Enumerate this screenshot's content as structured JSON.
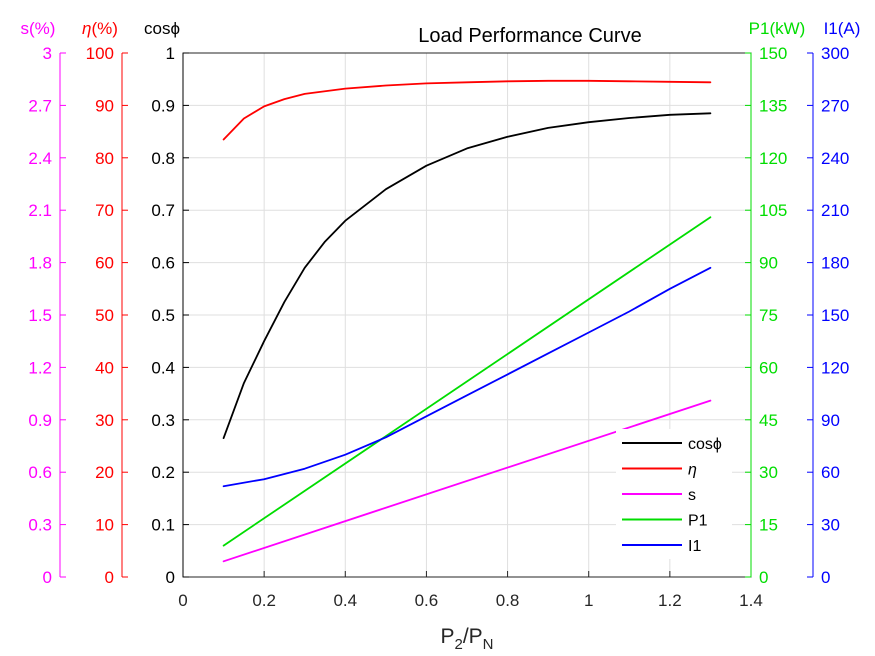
{
  "chart_data": {
    "type": "line",
    "title": "Load Performance Curve",
    "xlabel": {
      "base": "P",
      "sub1": "2",
      "slash": "/P",
      "sub2": "N"
    },
    "xlim": [
      0,
      1.4
    ],
    "xticks": [
      0,
      0.2,
      0.4,
      0.6,
      0.8,
      1,
      1.2,
      1.4
    ],
    "grid": true,
    "legend_location": "bottom-right",
    "axes": [
      {
        "id": "s",
        "side": "left",
        "label": "s(%)",
        "color": "#ff00ff",
        "lim": [
          0,
          3
        ],
        "ticks": [
          "0",
          "0.3",
          "0.6",
          "0.9",
          "1.2",
          "1.5",
          "1.8",
          "2.1",
          "2.4",
          "2.7",
          "3"
        ]
      },
      {
        "id": "eta",
        "side": "left",
        "label": "η(%)",
        "label_base": "η",
        "label_suffix": "(%)",
        "color": "#ff0000",
        "lim": [
          0,
          100
        ],
        "ticks": [
          "0",
          "10",
          "20",
          "30",
          "40",
          "50",
          "60",
          "70",
          "80",
          "90",
          "100"
        ]
      },
      {
        "id": "cos",
        "side": "left",
        "label": "cosϕ",
        "color": "#000000",
        "lim": [
          0,
          1
        ],
        "ticks": [
          "0",
          "0.1",
          "0.2",
          "0.3",
          "0.4",
          "0.5",
          "0.6",
          "0.7",
          "0.8",
          "0.9",
          "1"
        ]
      },
      {
        "id": "p1",
        "side": "right",
        "label": "P1(kW)",
        "color": "#00dd00",
        "lim": [
          0,
          150
        ],
        "ticks": [
          "0",
          "15",
          "30",
          "45",
          "60",
          "75",
          "90",
          "105",
          "120",
          "135",
          "150"
        ]
      },
      {
        "id": "i1",
        "side": "right",
        "label": "I1(A)",
        "color": "#0000ff",
        "lim": [
          0,
          300
        ],
        "ticks": [
          "0",
          "30",
          "60",
          "90",
          "120",
          "150",
          "180",
          "210",
          "240",
          "270",
          "300"
        ]
      }
    ],
    "series": [
      {
        "name": "cosϕ",
        "axis": "cos",
        "color": "#000000",
        "x": [
          0.1,
          0.15,
          0.2,
          0.25,
          0.3,
          0.35,
          0.4,
          0.5,
          0.6,
          0.7,
          0.8,
          0.9,
          1.0,
          1.1,
          1.2,
          1.3
        ],
        "y": [
          0.265,
          0.37,
          0.45,
          0.525,
          0.59,
          0.64,
          0.68,
          0.74,
          0.785,
          0.818,
          0.84,
          0.857,
          0.868,
          0.876,
          0.882,
          0.885
        ]
      },
      {
        "name": "η",
        "axis": "eta",
        "color": "#ff0000",
        "x": [
          0.1,
          0.15,
          0.2,
          0.25,
          0.3,
          0.4,
          0.5,
          0.6,
          0.7,
          0.8,
          0.9,
          1.0,
          1.1,
          1.2,
          1.3
        ],
        "y": [
          83.5,
          87.5,
          89.8,
          91.2,
          92.2,
          93.2,
          93.8,
          94.2,
          94.4,
          94.6,
          94.7,
          94.7,
          94.6,
          94.5,
          94.4
        ]
      },
      {
        "name": "s",
        "axis": "s",
        "color": "#ff00ff",
        "x": [
          0.1,
          1.3
        ],
        "y": [
          0.09,
          1.01
        ]
      },
      {
        "name": "P1",
        "axis": "p1",
        "color": "#00dd00",
        "x": [
          0.1,
          1.3
        ],
        "y": [
          9,
          103
        ]
      },
      {
        "name": "I1",
        "axis": "i1",
        "color": "#0000ff",
        "x": [
          0.1,
          0.2,
          0.3,
          0.4,
          0.5,
          0.6,
          0.7,
          0.8,
          0.9,
          1.0,
          1.1,
          1.2,
          1.3
        ],
        "y": [
          52,
          56,
          62,
          70,
          80,
          92,
          104,
          116,
          128,
          140,
          152,
          165,
          177
        ]
      }
    ]
  }
}
